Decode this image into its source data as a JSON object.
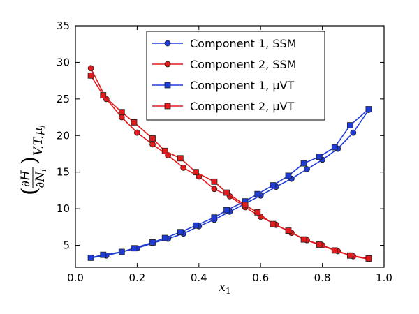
{
  "chart_data": {
    "type": "line",
    "title": "",
    "xlabel": "x1",
    "ylabel": "(∂H/∂Ni) V,T,μj",
    "xlim": [
      0.0,
      1.0
    ],
    "ylim": [
      2,
      35
    ],
    "x_ticks": [
      "0.0",
      "0.2",
      "0.4",
      "0.6",
      "0.8",
      "1.0"
    ],
    "y_ticks": [
      "5",
      "10",
      "15",
      "20",
      "25",
      "30",
      "35"
    ],
    "legend_position": "top-center",
    "series": [
      {
        "name": "Component 1, SSM",
        "color": "#1f3bd6",
        "marker": "circle",
        "x": [
          0.05,
          0.1,
          0.15,
          0.2,
          0.25,
          0.3,
          0.35,
          0.4,
          0.45,
          0.5,
          0.55,
          0.6,
          0.65,
          0.7,
          0.75,
          0.8,
          0.85,
          0.9,
          0.95
        ],
        "y": [
          3.3,
          3.6,
          4.1,
          4.6,
          5.3,
          5.9,
          6.6,
          7.6,
          8.5,
          9.6,
          10.7,
          11.8,
          13.0,
          14.1,
          15.4,
          16.7,
          18.2,
          20.4,
          23.5
        ]
      },
      {
        "name": "Component 2, SSM",
        "color": "#e31a1c",
        "marker": "circle",
        "x": [
          0.05,
          0.1,
          0.15,
          0.2,
          0.25,
          0.3,
          0.35,
          0.4,
          0.45,
          0.5,
          0.55,
          0.6,
          0.65,
          0.7,
          0.75,
          0.8,
          0.85,
          0.9,
          0.95
        ],
        "y": [
          29.2,
          25.0,
          22.5,
          20.4,
          18.8,
          17.3,
          15.6,
          14.4,
          12.7,
          11.7,
          10.2,
          8.9,
          7.8,
          6.7,
          5.7,
          5.0,
          4.2,
          3.5,
          3.1
        ]
      },
      {
        "name": "Component 1, μVT",
        "color": "#1f3bd6",
        "marker": "square",
        "x": [
          0.05,
          0.09,
          0.15,
          0.19,
          0.25,
          0.29,
          0.34,
          0.39,
          0.45,
          0.49,
          0.55,
          0.59,
          0.64,
          0.69,
          0.74,
          0.79,
          0.84,
          0.89,
          0.95
        ],
        "y": [
          3.3,
          3.7,
          4.1,
          4.6,
          5.4,
          6.0,
          6.8,
          7.7,
          8.8,
          9.8,
          11.0,
          12.0,
          13.2,
          14.5,
          16.2,
          17.1,
          18.4,
          21.4,
          23.6
        ]
      },
      {
        "name": "Component 2, μVT",
        "color": "#e31a1c",
        "marker": "square",
        "x": [
          0.05,
          0.09,
          0.15,
          0.19,
          0.25,
          0.29,
          0.34,
          0.39,
          0.45,
          0.49,
          0.55,
          0.59,
          0.64,
          0.69,
          0.74,
          0.79,
          0.84,
          0.89,
          0.95
        ],
        "y": [
          28.2,
          25.5,
          23.2,
          21.8,
          19.6,
          17.9,
          16.9,
          15.0,
          13.7,
          12.2,
          10.5,
          9.5,
          7.9,
          7.0,
          5.8,
          5.1,
          4.3,
          3.6,
          3.2
        ]
      }
    ]
  }
}
